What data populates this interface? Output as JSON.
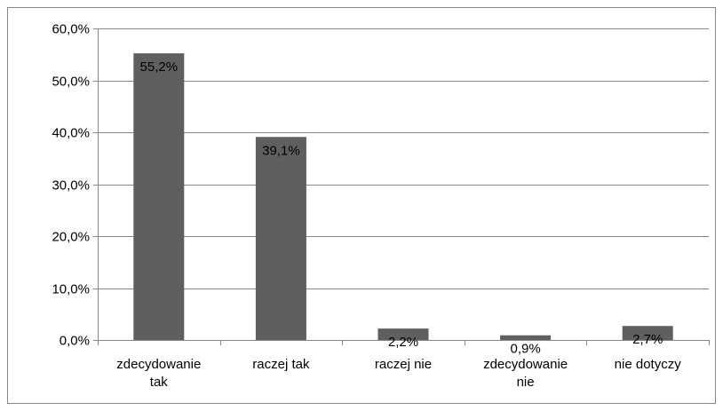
{
  "chart_data": {
    "type": "bar",
    "categories": [
      "zdecydowanie tak",
      "raczej tak",
      "raczej nie",
      "zdecydowanie nie",
      "nie dotyczy"
    ],
    "category_lines": [
      [
        "zdecydowanie",
        "tak"
      ],
      [
        "raczej tak"
      ],
      [
        "raczej nie"
      ],
      [
        "zdecydowanie",
        "nie"
      ],
      [
        "nie dotyczy"
      ]
    ],
    "values": [
      55.2,
      39.1,
      2.2,
      0.9,
      2.7
    ],
    "data_labels": [
      "55,2%",
      "39,1%",
      "2,2%",
      "0,9%",
      "2,7%"
    ],
    "y_ticks": [
      0,
      10,
      20,
      30,
      40,
      50,
      60
    ],
    "y_tick_labels": [
      "0,0%",
      "10,0%",
      "20,0%",
      "30,0%",
      "40,0%",
      "50,0%",
      "60,0%"
    ],
    "ylim": [
      0,
      60
    ],
    "grid": true,
    "legend": "none",
    "colors": {
      "bar": "#5f5f5f",
      "grid": "#878787",
      "axis": "#878787",
      "frame": "#868686"
    }
  }
}
